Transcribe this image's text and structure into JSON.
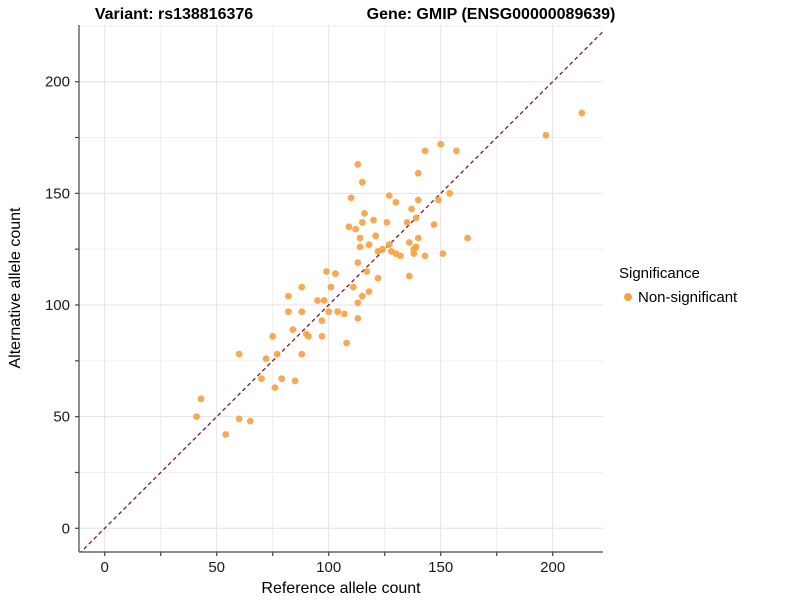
{
  "chart_data": {
    "type": "scatter",
    "title_left": "Variant: rs138816376",
    "title_right": "Gene: GMIP (ENSG00000089639)",
    "xlabel": "Reference allele count",
    "ylabel": "Alternative allele count",
    "x_ticks_major": [
      0,
      50,
      100,
      150,
      200
    ],
    "y_ticks_major": [
      0,
      50,
      100,
      150,
      200
    ],
    "minor_tick_step": 25,
    "xlim": [
      -11.5,
      222.5
    ],
    "ylim": [
      -10.6,
      225.4
    ],
    "grid": true,
    "legend_position": "right",
    "legend": {
      "title": "Significance",
      "items": [
        {
          "label": "Non-significant",
          "color": "#F9A242",
          "marker": "dot"
        }
      ]
    },
    "reference_line": {
      "type": "identity",
      "slope": 1,
      "intercept": 0,
      "style": "dashed",
      "color": "#7B1B24"
    },
    "series": [
      {
        "name": "Non-significant",
        "color": "#F9A242",
        "points": [
          [
            41,
            50
          ],
          [
            43,
            58
          ],
          [
            54,
            42
          ],
          [
            60,
            49
          ],
          [
            65,
            48
          ],
          [
            60,
            78
          ],
          [
            70,
            67
          ],
          [
            72,
            76
          ],
          [
            76,
            63
          ],
          [
            75,
            86
          ],
          [
            77,
            78
          ],
          [
            79,
            67
          ],
          [
            84,
            89
          ],
          [
            85,
            66
          ],
          [
            88,
            78
          ],
          [
            90,
            87
          ],
          [
            91,
            86
          ],
          [
            97,
            86
          ],
          [
            82,
            97
          ],
          [
            82,
            104
          ],
          [
            88,
            97
          ],
          [
            88,
            108
          ],
          [
            95,
            102
          ],
          [
            97,
            93
          ],
          [
            98,
            102
          ],
          [
            99,
            115
          ],
          [
            100,
            97
          ],
          [
            101,
            108
          ],
          [
            103,
            114
          ],
          [
            104,
            97
          ],
          [
            107,
            96
          ],
          [
            108,
            83
          ],
          [
            109,
            135
          ],
          [
            110,
            148
          ],
          [
            111,
            108
          ],
          [
            112,
            134
          ],
          [
            113,
            94
          ],
          [
            113,
            101
          ],
          [
            113,
            119
          ],
          [
            113,
            163
          ],
          [
            114,
            126
          ],
          [
            114,
            130
          ],
          [
            115,
            104
          ],
          [
            115,
            137
          ],
          [
            115,
            155
          ],
          [
            116,
            141
          ],
          [
            117,
            115
          ],
          [
            118,
            106
          ],
          [
            118,
            127
          ],
          [
            120,
            138
          ],
          [
            121,
            131
          ],
          [
            122,
            112
          ],
          [
            122,
            124
          ],
          [
            124,
            125
          ],
          [
            126,
            137
          ],
          [
            127,
            127
          ],
          [
            127,
            149
          ],
          [
            128,
            124
          ],
          [
            130,
            123
          ],
          [
            132,
            122
          ],
          [
            130,
            146
          ],
          [
            135,
            137
          ],
          [
            136,
            113
          ],
          [
            136,
            128
          ],
          [
            137,
            143
          ],
          [
            138,
            125
          ],
          [
            138,
            123
          ],
          [
            139,
            126
          ],
          [
            139,
            139
          ],
          [
            140,
            130
          ],
          [
            140,
            147
          ],
          [
            140,
            159
          ],
          [
            143,
            122
          ],
          [
            143,
            169
          ],
          [
            147,
            136
          ],
          [
            149,
            147
          ],
          [
            150,
            172
          ],
          [
            151,
            123
          ],
          [
            154,
            150
          ],
          [
            157,
            169
          ],
          [
            162,
            130
          ],
          [
            197,
            176
          ],
          [
            213,
            186
          ]
        ]
      }
    ],
    "colors": {
      "point": "#F9A242",
      "identity_line": "#7B1B24",
      "grid_major": "#E3E3E3",
      "grid_minor": "#F0F0F0",
      "axis_line": "#444444",
      "background": "#FFFFFF"
    }
  }
}
